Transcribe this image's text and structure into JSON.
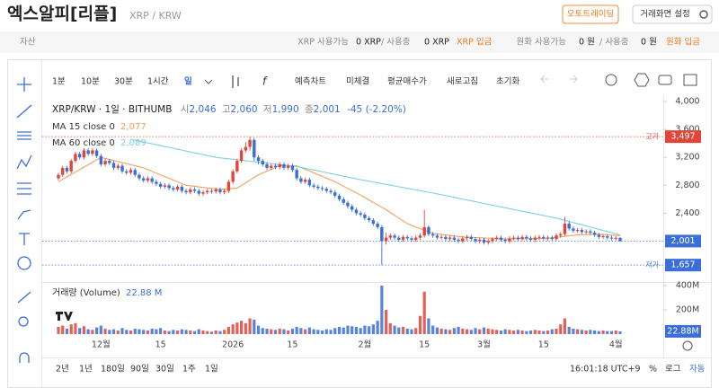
{
  "header": {
    "title": "엑스알피[리플]",
    "pair": "XRP / KRW",
    "buttons": [
      "오토트레이딩",
      "거래화면 설정"
    ]
  },
  "info_bar": {
    "asset": "자산",
    "xrp_available": "XRP 사용가능",
    "xrp_amount": "0 XRP",
    "xrp_in_use": "/ 사용중",
    "xrp_in_use_amount": "0 XRP",
    "xrp_deposit": "XRP 입금",
    "krw_available": "원화 사용가능",
    "krw_amount": "0 원",
    "krw_in_use": "/ 사용중",
    "krw_in_use_amount": "0 원",
    "krw_deposit": "원화 입금"
  },
  "toolbar": {
    "intervals": [
      "1분",
      "10분",
      "30분",
      "1시간",
      "일"
    ],
    "actions": [
      "예측차트",
      "미체결",
      "평균매수가",
      "새로고침",
      "초기화"
    ]
  },
  "footer": {
    "ranges": [
      "2년",
      "1년",
      "180일",
      "90일",
      "30일",
      "1주",
      "1일"
    ],
    "time": "16:01:18 UTC+9",
    "percent": "%",
    "log": "로그",
    "auto": "자동"
  },
  "chart_data": {
    "type": "candlestick",
    "legend": {
      "symbol": "XRP/KRW · 1일 · BITHUMB",
      "items": [
        {
          "key": "시",
          "value": "2,046"
        },
        {
          "key": "고",
          "value": "2,060"
        },
        {
          "key": "저",
          "value": "1,990"
        },
        {
          "key": "종",
          "value": "2,001"
        }
      ],
      "change": "-45 (-2.20%)"
    },
    "categories": [
      null,
      null,
      null,
      null,
      null,
      null,
      null,
      null,
      null,
      null,
      "12월",
      null,
      null,
      null,
      null,
      null,
      null,
      null,
      null,
      null,
      null,
      null,
      null,
      null,
      "15",
      null,
      null,
      null,
      null,
      null,
      null,
      null,
      null,
      null,
      null,
      null,
      null,
      null,
      null,
      null,
      null,
      "2026",
      null,
      null,
      null,
      null,
      null,
      null,
      null,
      null,
      null,
      null,
      null,
      null,
      null,
      "15",
      null,
      null,
      null,
      null,
      null,
      null,
      null,
      null,
      null,
      null,
      null,
      null,
      null,
      null,
      null,
      null,
      "2월",
      null,
      null,
      null,
      null,
      null,
      null,
      null,
      null,
      null,
      null,
      null,
      null,
      null,
      "15",
      null,
      null,
      null,
      null,
      null,
      null,
      null,
      null,
      null,
      null,
      null,
      null,
      null,
      "3월",
      null,
      null,
      null,
      null,
      null,
      null,
      null,
      null,
      null,
      null,
      null,
      null,
      null,
      "15",
      null,
      null,
      null,
      null,
      null,
      null,
      null,
      null,
      null,
      null,
      null,
      null,
      null,
      null,
      null,
      null,
      "4월",
      null
    ],
    "open": [
      2900,
      2950,
      3050,
      3000,
      3150,
      3250,
      3200,
      3300,
      3250,
      3300,
      3220,
      3100,
      3150,
      3120,
      3050,
      3080,
      3000,
      2980,
      3020,
      2950,
      2900,
      2870,
      2900,
      2850,
      2820,
      2780,
      2800,
      2760,
      2740,
      2780,
      2720,
      2700,
      2740,
      2720,
      2680,
      2700,
      2720,
      2710,
      2740,
      2700,
      2720,
      2850,
      3000,
      3150,
      3300,
      3350,
      3450,
      3200,
      3150,
      3100,
      3050,
      3080,
      3060,
      3100,
      3050,
      3080,
      3020,
      2900,
      2850,
      2880,
      2800,
      2780,
      2760,
      2750,
      2720,
      2700,
      2650,
      2600,
      2550,
      2500,
      2450,
      2400,
      2380,
      2330,
      2300,
      2250,
      2200,
      2000,
      2050,
      2080,
      2050,
      2020,
      2060,
      2040,
      2020,
      2050,
      2080,
      2200,
      2100,
      2080,
      2050,
      2060,
      2030,
      2050,
      2020,
      2000,
      2040,
      2060,
      2030,
      2000,
      2020,
      1980,
      2000,
      2030,
      2050,
      2020,
      2000,
      2040,
      2050,
      2030,
      2060,
      2040,
      2020,
      2050,
      2060,
      2040,
      2050,
      2030,
      2080,
      2100,
      2250,
      2180,
      2150,
      2160,
      2130,
      2140,
      2120,
      2090,
      2060,
      2070,
      2050,
      2040,
      2046
    ],
    "high": [
      2980,
      3080,
      3080,
      3180,
      3280,
      3280,
      3330,
      3330,
      3330,
      3330,
      3250,
      3180,
      3180,
      3150,
      3110,
      3110,
      3030,
      3050,
      3050,
      2980,
      2930,
      2930,
      2930,
      2880,
      2850,
      2830,
      2830,
      2790,
      2810,
      2810,
      2750,
      2770,
      2770,
      2750,
      2730,
      2750,
      2750,
      2770,
      2770,
      2750,
      2880,
      3030,
      3180,
      3330,
      3420,
      3497,
      3480,
      3230,
      3180,
      3130,
      3110,
      3110,
      3130,
      3130,
      3110,
      3110,
      3050,
      2930,
      2910,
      2910,
      2830,
      2810,
      2790,
      2780,
      2750,
      2730,
      2680,
      2630,
      2580,
      2530,
      2480,
      2430,
      2410,
      2360,
      2330,
      2280,
      2230,
      2120,
      2110,
      2110,
      2080,
      2090,
      2090,
      2070,
      2080,
      2110,
      2450,
      2230,
      2130,
      2110,
      2090,
      2090,
      2080,
      2080,
      2050,
      2070,
      2090,
      2090,
      2060,
      2050,
      2050,
      2030,
      2060,
      2080,
      2080,
      2050,
      2070,
      2080,
      2080,
      2090,
      2090,
      2070,
      2080,
      2090,
      2090,
      2080,
      2080,
      2110,
      2130,
      2350,
      2280,
      2210,
      2190,
      2190,
      2170,
      2170,
      2150,
      2120,
      2100,
      2100,
      2080,
      2070,
      2060
    ],
    "low": [
      2870,
      2920,
      2970,
      2970,
      3120,
      3170,
      3170,
      3220,
      3220,
      3190,
      3070,
      3070,
      3090,
      3020,
      3020,
      2970,
      2950,
      2950,
      2920,
      2870,
      2840,
      2840,
      2820,
      2790,
      2750,
      2750,
      2730,
      2710,
      2710,
      2690,
      2670,
      2670,
      2690,
      2650,
      2650,
      2670,
      2680,
      2680,
      2670,
      2670,
      2690,
      2820,
      2970,
      3120,
      3270,
      3300,
      3150,
      3100,
      3070,
      3020,
      3020,
      3030,
      3030,
      3020,
      3020,
      2990,
      2870,
      2820,
      2820,
      2770,
      2750,
      2730,
      2720,
      2690,
      2670,
      2620,
      2570,
      2520,
      2470,
      2420,
      2370,
      2350,
      2300,
      2270,
      2220,
      2170,
      1657,
      1950,
      2020,
      2020,
      1990,
      1990,
      2010,
      1990,
      1990,
      2020,
      2050,
      2070,
      2050,
      2020,
      2020,
      2000,
      2000,
      1990,
      1970,
      1970,
      2010,
      2000,
      1970,
      1970,
      1950,
      1950,
      1970,
      2000,
      1990,
      1970,
      1970,
      2010,
      2000,
      2000,
      2010,
      1990,
      1990,
      2020,
      2010,
      2010,
      2000,
      2000,
      2050,
      2070,
      2150,
      2120,
      2120,
      2100,
      2100,
      2090,
      2060,
      2030,
      2030,
      2020,
      2010,
      2010,
      1990
    ],
    "close": [
      2950,
      3050,
      3000,
      3150,
      3250,
      3200,
      3300,
      3250,
      3300,
      3220,
      3100,
      3150,
      3120,
      3050,
      3080,
      3000,
      2980,
      3020,
      2950,
      2900,
      2870,
      2900,
      2850,
      2820,
      2780,
      2800,
      2760,
      2740,
      2780,
      2720,
      2700,
      2740,
      2720,
      2680,
      2700,
      2720,
      2710,
      2740,
      2700,
      2720,
      2850,
      3000,
      3150,
      3300,
      3350,
      3450,
      3200,
      3150,
      3100,
      3050,
      3080,
      3060,
      3100,
      3050,
      3080,
      3020,
      2900,
      2850,
      2880,
      2800,
      2780,
      2760,
      2750,
      2720,
      2700,
      2650,
      2600,
      2550,
      2500,
      2450,
      2400,
      2380,
      2330,
      2300,
      2250,
      2200,
      2000,
      2050,
      2080,
      2050,
      2020,
      2060,
      2040,
      2020,
      2050,
      2080,
      2200,
      2100,
      2080,
      2050,
      2060,
      2030,
      2050,
      2020,
      2000,
      2040,
      2060,
      2030,
      2000,
      2020,
      1980,
      2000,
      2030,
      2050,
      2020,
      2000,
      2040,
      2050,
      2030,
      2060,
      2040,
      2020,
      2050,
      2060,
      2040,
      2050,
      2030,
      2080,
      2100,
      2250,
      2180,
      2150,
      2160,
      2130,
      2140,
      2120,
      2090,
      2060,
      2070,
      2050,
      2040,
      2046,
      2001
    ],
    "up_color": "#e0453a",
    "down_color": "#3a6fd8",
    "ylim": [
      1440,
      4065
    ],
    "yticks": [
      {
        "value": 2400,
        "label": "2,400"
      },
      {
        "value": 2800,
        "label": "2,800"
      },
      {
        "value": 3200,
        "label": "3,200"
      },
      {
        "value": 3600,
        "label": "3,600"
      },
      {
        "value": 4000,
        "label": "4,000"
      }
    ],
    "grid": false,
    "price_markers": [
      {
        "text": "고가",
        "value": 3497,
        "label": "3,497",
        "color": "#e0453a"
      },
      {
        "text": "저가",
        "value": 1657,
        "label": "1,657",
        "color": "#3a6fd8"
      },
      {
        "value": 2001,
        "label": "2,001",
        "color": "#3a6fd8"
      }
    ],
    "ma": [
      {
        "name": "MA 15 close 0",
        "value_label": "2,077",
        "color": "#f2a05c",
        "values": [
          2850,
          2885,
          2920,
          2955,
          2990,
          3025,
          3060,
          3095,
          3130,
          3165,
          3200,
          3185,
          3170,
          3155,
          3140,
          3125,
          3110,
          3095,
          3080,
          3065,
          3050,
          3025,
          3000,
          2975,
          2950,
          2925,
          2900,
          2875,
          2850,
          2825,
          2800,
          2793,
          2785,
          2778,
          2770,
          2763,
          2755,
          2748,
          2740,
          2745,
          2750,
          2755,
          2760,
          2798,
          2836,
          2874,
          2912,
          2950,
          2976,
          3002,
          3028,
          3054,
          3080,
          3080,
          3080,
          3080,
          3080,
          3055,
          3030,
          3005,
          2980,
          2954,
          2928,
          2902,
          2876,
          2850,
          2818,
          2787,
          2755,
          2723,
          2692,
          2660,
          2625,
          2590,
          2555,
          2520,
          2485,
          2450,
          2410,
          2370,
          2330,
          2290,
          2250,
          2227,
          2203,
          2180,
          2157,
          2133,
          2110,
          2103,
          2096,
          2089,
          2081,
          2074,
          2067,
          2060,
          2057,
          2054,
          2051,
          2048,
          2045,
          2042,
          2039,
          2036,
          2033,
          2030,
          2031,
          2032,
          2033,
          2034,
          2035,
          2036,
          2037,
          2038,
          2039,
          2040,
          2047,
          2054,
          2061,
          2069,
          2076,
          2083,
          2090,
          2092,
          2094,
          2096,
          2098,
          2100,
          2095,
          2091,
          2086,
          2082,
          2077
        ]
      },
      {
        "name": "MA 60 close 0",
        "value_label": "2,089",
        "color": "#7fd0e3",
        "values": [
          null,
          null,
          null,
          null,
          null,
          null,
          null,
          null,
          null,
          null,
          null,
          null,
          null,
          null,
          null,
          null,
          null,
          3460,
          3447,
          3434,
          3421,
          3408,
          3395,
          3382,
          3369,
          3356,
          3343,
          3330,
          3317,
          3304,
          3291,
          3278,
          3265,
          3252,
          3239,
          3226,
          3213,
          3200,
          3193,
          3186,
          3179,
          3173,
          3166,
          3159,
          3152,
          3145,
          3138,
          3131,
          3125,
          3118,
          3111,
          3104,
          3097,
          3090,
          3084,
          3077,
          3070,
          3057,
          3045,
          3032,
          3019,
          3007,
          2994,
          2981,
          2969,
          2956,
          2943,
          2931,
          2918,
          2905,
          2893,
          2880,
          2869,
          2858,
          2846,
          2835,
          2824,
          2813,
          2802,
          2791,
          2779,
          2768,
          2757,
          2746,
          2735,
          2724,
          2712,
          2701,
          2690,
          2678,
          2665,
          2653,
          2640,
          2628,
          2615,
          2603,
          2590,
          2578,
          2565,
          2553,
          2540,
          2528,
          2515,
          2503,
          2490,
          2478,
          2465,
          2453,
          2441,
          2428,
          2416,
          2404,
          2392,
          2379,
          2367,
          2355,
          2342,
          2330,
          2314,
          2298,
          2282,
          2266,
          2250,
          2234,
          2218,
          2201,
          2185,
          2169,
          2153,
          2137,
          2121,
          2105,
          2089
        ]
      }
    ],
    "volume": {
      "title": "거래량 (Volume)",
      "legend_label": "22.88 M",
      "last_label": "22.88M",
      "ylim": [
        0,
        415
      ],
      "yticks": [
        {
          "value": 200,
          "label": "200M"
        },
        {
          "value": 400,
          "label": "400M"
        }
      ],
      "values": [
        60,
        70,
        45,
        80,
        90,
        50,
        65,
        40,
        35,
        55,
        70,
        45,
        35,
        40,
        30,
        50,
        35,
        30,
        45,
        40,
        35,
        30,
        45,
        40,
        50,
        30,
        25,
        35,
        30,
        40,
        35,
        30,
        25,
        40,
        30,
        25,
        20,
        30,
        25,
        35,
        60,
        80,
        95,
        110,
        90,
        130,
        120,
        70,
        50,
        45,
        40,
        35,
        45,
        40,
        30,
        45,
        60,
        50,
        40,
        55,
        40,
        35,
        30,
        40,
        35,
        50,
        60,
        55,
        70,
        65,
        60,
        50,
        70,
        65,
        80,
        110,
        400,
        200,
        90,
        70,
        55,
        60,
        45,
        40,
        50,
        150,
        350,
        130,
        70,
        55,
        45,
        40,
        35,
        50,
        60,
        45,
        40,
        35,
        50,
        40,
        55,
        45,
        40,
        35,
        30,
        40,
        35,
        30,
        35,
        30,
        25,
        30,
        35,
        30,
        25,
        30,
        40,
        45,
        80,
        130,
        60,
        45,
        40,
        35,
        30,
        35,
        30,
        25,
        30,
        25,
        25,
        30,
        22.88
      ]
    }
  }
}
